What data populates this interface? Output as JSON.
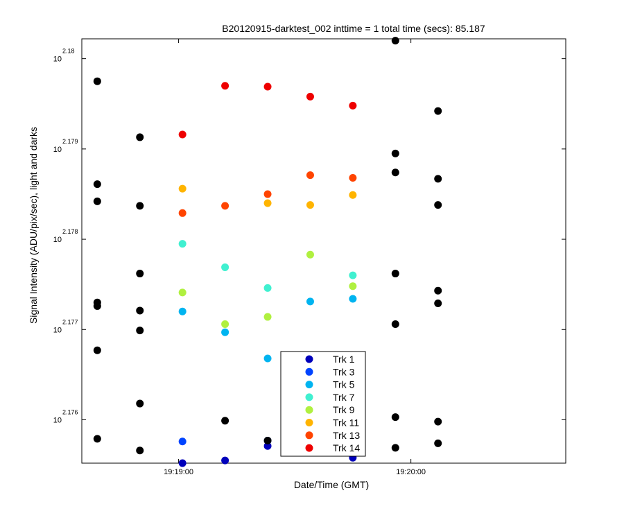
{
  "chart_data": {
    "type": "scatter",
    "title": "B20120915-darktest_002 inttime = 1 total time (secs): 85.187",
    "xlabel": "Date/Time (GMT)",
    "ylabel": "Signal Intensity (ADU/pix/sec), light and darks",
    "x_range": [
      "19:18:35",
      "19:20:40"
    ],
    "y_range_exponent": [
      2.17552,
      2.18022
    ],
    "y_scale": "log",
    "x_ticks": [
      "19:19:00",
      "19:20:00"
    ],
    "y_ticks": [
      {
        "base": "10",
        "exp": "2.176",
        "value": 2.176
      },
      {
        "base": "10",
        "exp": "2.177",
        "value": 2.177
      },
      {
        "base": "10",
        "exp": "2.178",
        "value": 2.178
      },
      {
        "base": "10",
        "exp": "2.179",
        "value": 2.179
      },
      {
        "base": "10",
        "exp": "2.18",
        "value": 2.18
      }
    ],
    "grid": false,
    "legend_position": "bottom-center",
    "x_times": [
      "19:18:39",
      "19:18:50",
      "19:19:01",
      "19:19:12",
      "19:19:23",
      "19:19:34",
      "19:19:45",
      "19:19:56",
      "19:20:07"
    ],
    "series": [
      {
        "name": "Trk 1",
        "color": "#0000bb",
        "x": [
          "19:19:01",
          "19:19:12",
          "19:19:23",
          "19:19:45"
        ],
        "y": [
          2.17552,
          2.17555,
          2.17571,
          2.17558
        ]
      },
      {
        "name": "Trk 3",
        "color": "#0044ff",
        "x": [
          "19:19:01",
          "19:19:23"
        ],
        "y": [
          2.17576,
          2.17577
        ]
      },
      {
        "name": "Trk 5",
        "color": "#00b4f0",
        "x": [
          "19:19:01",
          "19:19:12",
          "19:19:23",
          "19:19:34",
          "19:19:45"
        ],
        "y": [
          2.1772,
          2.17697,
          2.17668,
          2.17731,
          2.17734
        ]
      },
      {
        "name": "Trk 7",
        "color": "#40f0d0",
        "x": [
          "19:19:01",
          "19:19:12",
          "19:19:23",
          "19:19:45"
        ],
        "y": [
          2.17795,
          2.17769,
          2.17746,
          2.1776
        ]
      },
      {
        "name": "Trk 9",
        "color": "#b0f040",
        "x": [
          "19:19:01",
          "19:19:12",
          "19:19:23",
          "19:19:34",
          "19:19:45"
        ],
        "y": [
          2.17741,
          2.17706,
          2.17714,
          2.17783,
          2.17748
        ]
      },
      {
        "name": "Trk 11",
        "color": "#ffb400",
        "x": [
          "19:19:01",
          "19:19:23",
          "19:19:34",
          "19:19:45"
        ],
        "y": [
          2.17856,
          2.1784,
          2.17838,
          2.17849
        ]
      },
      {
        "name": "Trk 13",
        "color": "#ff4400",
        "x": [
          "19:19:01",
          "19:19:12",
          "19:19:23",
          "19:19:34",
          "19:19:45"
        ],
        "y": [
          2.17829,
          2.17837,
          2.1785,
          2.17871,
          2.17868
        ]
      },
      {
        "name": "Trk 14",
        "color": "#ee0000",
        "x": [
          "19:19:01",
          "19:19:12",
          "19:19:23",
          "19:19:34",
          "19:19:45"
        ],
        "y": [
          2.17916,
          2.1797,
          2.17969,
          2.17958,
          2.17948
        ]
      },
      {
        "name": "",
        "color": "#000000",
        "x": [
          "19:18:39",
          "19:18:39",
          "19:18:39",
          "19:18:39",
          "19:18:39",
          "19:18:39",
          "19:18:39",
          "19:18:50",
          "19:18:50",
          "19:18:50",
          "19:18:50",
          "19:18:50",
          "19:18:50",
          "19:18:50",
          "19:19:12",
          "19:19:23",
          "19:19:56",
          "19:19:56",
          "19:19:56",
          "19:19:56",
          "19:19:56",
          "19:19:56",
          "19:19:56",
          "19:20:07",
          "19:20:07",
          "19:20:07",
          "19:20:07",
          "19:20:07",
          "19:20:07",
          "19:20:07"
        ],
        "y": [
          2.17975,
          2.17861,
          2.17842,
          2.1773,
          2.17726,
          2.17677,
          2.17579,
          2.17913,
          2.17837,
          2.17762,
          2.17721,
          2.17699,
          2.17618,
          2.17566,
          2.17599,
          2.17577,
          2.1802,
          2.17895,
          2.17874,
          2.17762,
          2.17706,
          2.17603,
          2.17569,
          2.17942,
          2.17867,
          2.17838,
          2.17743,
          2.17729,
          2.17598,
          2.17574
        ]
      }
    ]
  }
}
